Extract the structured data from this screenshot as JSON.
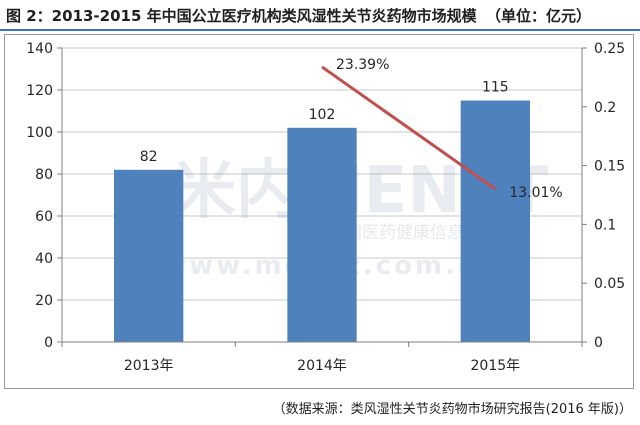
{
  "header": {
    "title": "图 2：2013-2015 年中国公立医疗机构类风湿性关节炎药物市场规模",
    "unit": "（单位：亿元）"
  },
  "footer": {
    "source": "（数据来源：类风湿性关节炎药物市场研究报告(2016 年版)）"
  },
  "watermark": {
    "logo": "米内MENET",
    "tagline": "中国医药健康信息第一平台",
    "url": "www.menet.com.cn"
  },
  "colors": {
    "bar": "#4f81bd",
    "line": "#c0504d",
    "grid": "#c8c8c8",
    "axis": "#7f7f7f"
  },
  "chart_data": {
    "type": "bar",
    "categories": [
      "2013年",
      "2014年",
      "2015年"
    ],
    "series": [
      {
        "values": [
          82,
          102,
          115
        ],
        "data_labels": [
          "82",
          "102",
          "115"
        ]
      },
      {
        "type": "line",
        "axis": "right",
        "values": [
          null,
          0.2339,
          0.1301
        ],
        "data_labels": [
          "",
          "23.39%",
          "13.01%"
        ]
      }
    ],
    "ylim": [
      0,
      140
    ],
    "y_ticks": [
      "0",
      "20",
      "40",
      "60",
      "80",
      "100",
      "120",
      "140"
    ],
    "y2lim": [
      0,
      0.25
    ],
    "y2_ticks": [
      "0",
      "0.05",
      "0.1",
      "0.15",
      "0.2",
      "0.25"
    ],
    "grid": true,
    "legend": "none"
  }
}
